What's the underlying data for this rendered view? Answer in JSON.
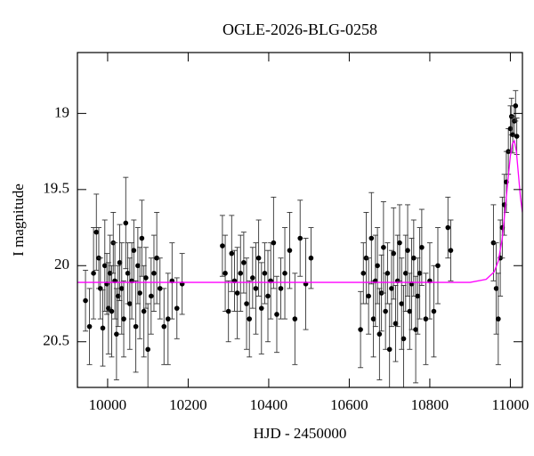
{
  "chart_data": {
    "type": "scatter",
    "title": "OGLE-2026-BLG-0258",
    "xlabel": "HJD - 2450000",
    "ylabel": "I magnitude",
    "xlim": [
      9925,
      11030
    ],
    "ylim": [
      20.8,
      18.6
    ],
    "xticks": [
      10000,
      10200,
      10400,
      10600,
      10800,
      11000
    ],
    "yticks": [
      19,
      19.5,
      20,
      20.5
    ],
    "series": [
      {
        "type": "scatter",
        "color": "#000000",
        "x": [
          9945,
          9955,
          9965,
          9972,
          9978,
          9982,
          9988,
          9993,
          9998,
          10002,
          10006,
          10010,
          10014,
          10018,
          10022,
          10026,
          10030,
          10035,
          10040,
          10045,
          10050,
          10055,
          10060,
          10065,
          10070,
          10075,
          10080,
          10085,
          10090,
          10095,
          10100,
          10108,
          10115,
          10122,
          10130,
          10140,
          10150,
          10160,
          10172,
          10185,
          10285,
          10292,
          10300,
          10308,
          10315,
          10322,
          10330,
          10338,
          10345,
          10352,
          10360,
          10368,
          10375,
          10382,
          10390,
          10398,
          10405,
          10412,
          10420,
          10430,
          10440,
          10452,
          10465,
          10478,
          10492,
          10505,
          10628,
          10635,
          10642,
          10648,
          10655,
          10660,
          10665,
          10670,
          10675,
          10680,
          10685,
          10690,
          10695,
          10700,
          10705,
          10710,
          10715,
          10720,
          10725,
          10730,
          10735,
          10740,
          10745,
          10750,
          10755,
          10760,
          10765,
          10770,
          10775,
          10780,
          10790,
          10800,
          10810,
          10820,
          10845,
          10852,
          10958,
          10965,
          10970,
          10975,
          10980,
          10985,
          10990,
          10995,
          11000,
          11003,
          11006,
          11010,
          11013,
          11016
        ],
        "values": [
          20.23,
          20.4,
          20.05,
          19.78,
          19.95,
          20.15,
          20.41,
          20.0,
          20.12,
          20.28,
          20.05,
          20.3,
          19.85,
          20.1,
          20.45,
          20.2,
          19.98,
          20.15,
          20.35,
          19.72,
          20.05,
          20.25,
          20.1,
          19.9,
          20.4,
          20.0,
          20.18,
          19.82,
          20.3,
          20.08,
          20.55,
          20.2,
          20.05,
          19.95,
          20.15,
          20.4,
          20.35,
          20.1,
          20.28,
          20.12,
          19.87,
          20.05,
          20.3,
          19.92,
          20.1,
          20.18,
          20.05,
          19.98,
          20.25,
          20.35,
          20.08,
          20.15,
          19.95,
          20.28,
          20.05,
          20.2,
          20.1,
          19.85,
          20.32,
          20.15,
          20.05,
          19.9,
          20.35,
          19.82,
          20.12,
          19.95,
          20.42,
          20.05,
          19.95,
          20.2,
          19.82,
          20.35,
          20.1,
          20.0,
          20.45,
          20.18,
          19.88,
          20.3,
          20.05,
          20.55,
          20.15,
          19.92,
          20.38,
          20.1,
          19.85,
          20.25,
          20.48,
          20.05,
          19.9,
          20.3,
          20.12,
          19.95,
          20.42,
          20.2,
          20.05,
          19.88,
          20.35,
          20.1,
          20.3,
          20.0,
          19.75,
          19.9,
          19.85,
          20.15,
          20.35,
          19.95,
          19.75,
          19.6,
          19.45,
          19.25,
          19.1,
          19.02,
          19.14,
          19.05,
          18.95,
          19.15
        ],
        "errors": [
          0.2,
          0.25,
          0.3,
          0.25,
          0.2,
          0.2,
          0.25,
          0.3,
          0.2,
          0.3,
          0.25,
          0.3,
          0.2,
          0.25,
          0.3,
          0.2,
          0.25,
          0.3,
          0.25,
          0.3,
          0.2,
          0.3,
          0.25,
          0.2,
          0.3,
          0.25,
          0.3,
          0.25,
          0.3,
          0.2,
          0.3,
          0.25,
          0.25,
          0.3,
          0.2,
          0.25,
          0.3,
          0.25,
          0.2,
          0.2,
          0.2,
          0.25,
          0.2,
          0.25,
          0.2,
          0.3,
          0.25,
          0.2,
          0.3,
          0.25,
          0.2,
          0.3,
          0.25,
          0.3,
          0.2,
          0.3,
          0.25,
          0.3,
          0.25,
          0.2,
          0.3,
          0.25,
          0.3,
          0.25,
          0.3,
          0.2,
          0.25,
          0.2,
          0.3,
          0.25,
          0.3,
          0.25,
          0.3,
          0.25,
          0.3,
          0.25,
          0.3,
          0.25,
          0.2,
          0.3,
          0.25,
          0.3,
          0.25,
          0.3,
          0.25,
          0.3,
          0.35,
          0.25,
          0.3,
          0.25,
          0.3,
          0.25,
          0.35,
          0.25,
          0.3,
          0.25,
          0.3,
          0.25,
          0.3,
          0.25,
          0.2,
          0.2,
          0.25,
          0.3,
          0.3,
          0.25,
          0.2,
          0.2,
          0.2,
          0.15,
          0.15,
          0.12,
          0.12,
          0.1,
          0.1,
          0.12
        ]
      },
      {
        "type": "line",
        "color": "#ff00ff",
        "x": [
          9925,
          10900,
          10940,
          10960,
          10970,
          10980,
          10990,
          11000,
          11005,
          11010,
          11015,
          11020,
          11025,
          11030
        ],
        "values": [
          20.11,
          20.11,
          20.09,
          20.04,
          19.97,
          19.82,
          19.55,
          19.28,
          19.2,
          19.18,
          19.25,
          19.4,
          19.55,
          19.65
        ]
      }
    ]
  }
}
